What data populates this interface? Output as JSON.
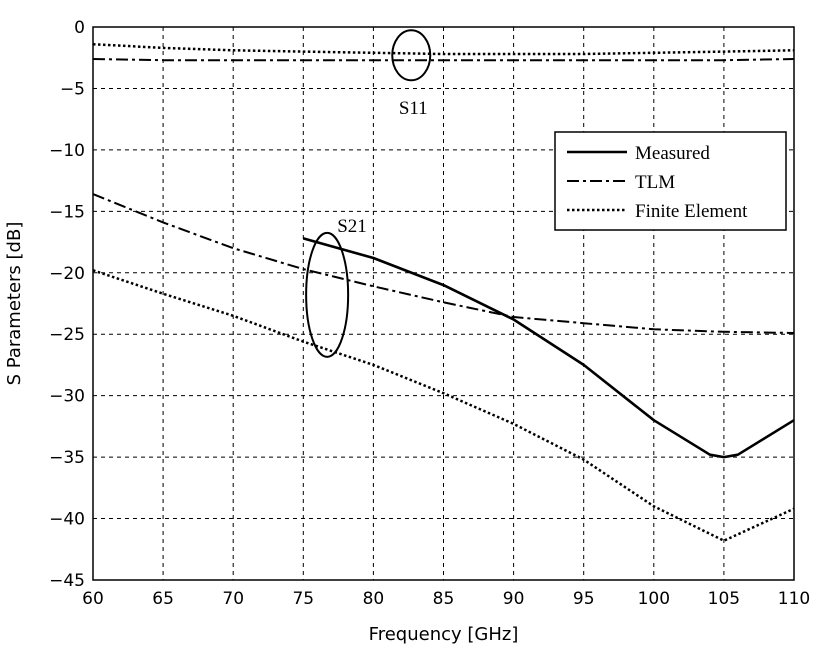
{
  "chart_data": {
    "type": "line",
    "xlabel": "Frequency [GHz]",
    "ylabel": "S Parameters [dB]",
    "xlim": [
      60,
      110
    ],
    "ylim": [
      -45,
      0
    ],
    "xticks": [
      60,
      65,
      70,
      75,
      80,
      85,
      90,
      95,
      100,
      105,
      110
    ],
    "yticks": [
      0,
      -5,
      -10,
      -15,
      -20,
      -25,
      -30,
      -35,
      -40,
      -45
    ],
    "grid": true,
    "legend_position": "upper-right",
    "legend": [
      "Measured",
      "TLM",
      "Finite Element"
    ],
    "annotations": [
      {
        "text": "S11",
        "x": 82.7,
        "y": -2.3
      },
      {
        "text": "S21",
        "x": 76.7,
        "y": -21.8
      }
    ],
    "series": [
      {
        "name": "Measured",
        "style": "solid",
        "x": [
          75,
          80,
          85,
          90,
          95,
          100,
          104,
          105,
          106,
          110
        ],
        "y": [
          -17.2,
          -18.8,
          -21.0,
          -23.8,
          -27.5,
          -32.0,
          -34.8,
          -35.0,
          -34.8,
          -32.0
        ]
      },
      {
        "name": "TLM",
        "style": "dashdot",
        "x": [
          60,
          65,
          70,
          75,
          80,
          85,
          90,
          95,
          100,
          105,
          110
        ],
        "y": [
          -13.6,
          -15.9,
          -18.0,
          -19.7,
          -21.1,
          -22.4,
          -23.6,
          -24.1,
          -24.6,
          -24.8,
          -24.9
        ]
      },
      {
        "name": "Finite Element",
        "style": "dotted",
        "x": [
          60,
          65,
          70,
          75,
          80,
          85,
          90,
          95,
          100,
          105,
          110
        ],
        "y": [
          -19.8,
          -21.7,
          -23.5,
          -25.6,
          -27.5,
          -29.8,
          -32.3,
          -35.2,
          -39.0,
          -41.8,
          -39.2
        ]
      },
      {
        "name": "S11 TLM",
        "style": "dashdot",
        "x": [
          60,
          65,
          70,
          75,
          80,
          85,
          90,
          95,
          100,
          105,
          110
        ],
        "y": [
          -2.6,
          -2.7,
          -2.7,
          -2.7,
          -2.7,
          -2.7,
          -2.7,
          -2.7,
          -2.7,
          -2.7,
          -2.6
        ]
      },
      {
        "name": "S11 Finite Element",
        "style": "dotted",
        "x": [
          60,
          65,
          70,
          75,
          80,
          85,
          90,
          95,
          100,
          105,
          110
        ],
        "y": [
          -1.4,
          -1.7,
          -1.9,
          -2.0,
          -2.1,
          -2.2,
          -2.2,
          -2.2,
          -2.1,
          -2.0,
          -1.9
        ]
      }
    ]
  }
}
